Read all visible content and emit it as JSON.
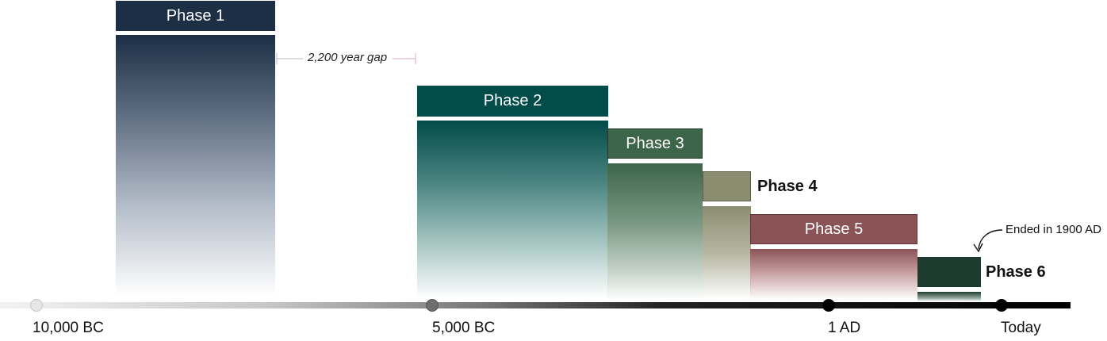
{
  "phases": [
    {
      "label": "Phase 1",
      "color": "#1d2f45"
    },
    {
      "label": "Phase 2",
      "color": "#024c49"
    },
    {
      "label": "Phase 3",
      "color": "#3c6549"
    },
    {
      "label": "Phase 4",
      "color": "#8b8d71"
    },
    {
      "label": "Phase 5",
      "color": "#8a5457"
    },
    {
      "label": "Phase 6",
      "color": "#1e3b30"
    }
  ],
  "axis": {
    "ticks": [
      "10,000 BC",
      "5,000 BC",
      "1 AD",
      "Today"
    ]
  },
  "annotations": {
    "gap": "2,200 year gap",
    "ended": "Ended in 1900 AD"
  }
}
